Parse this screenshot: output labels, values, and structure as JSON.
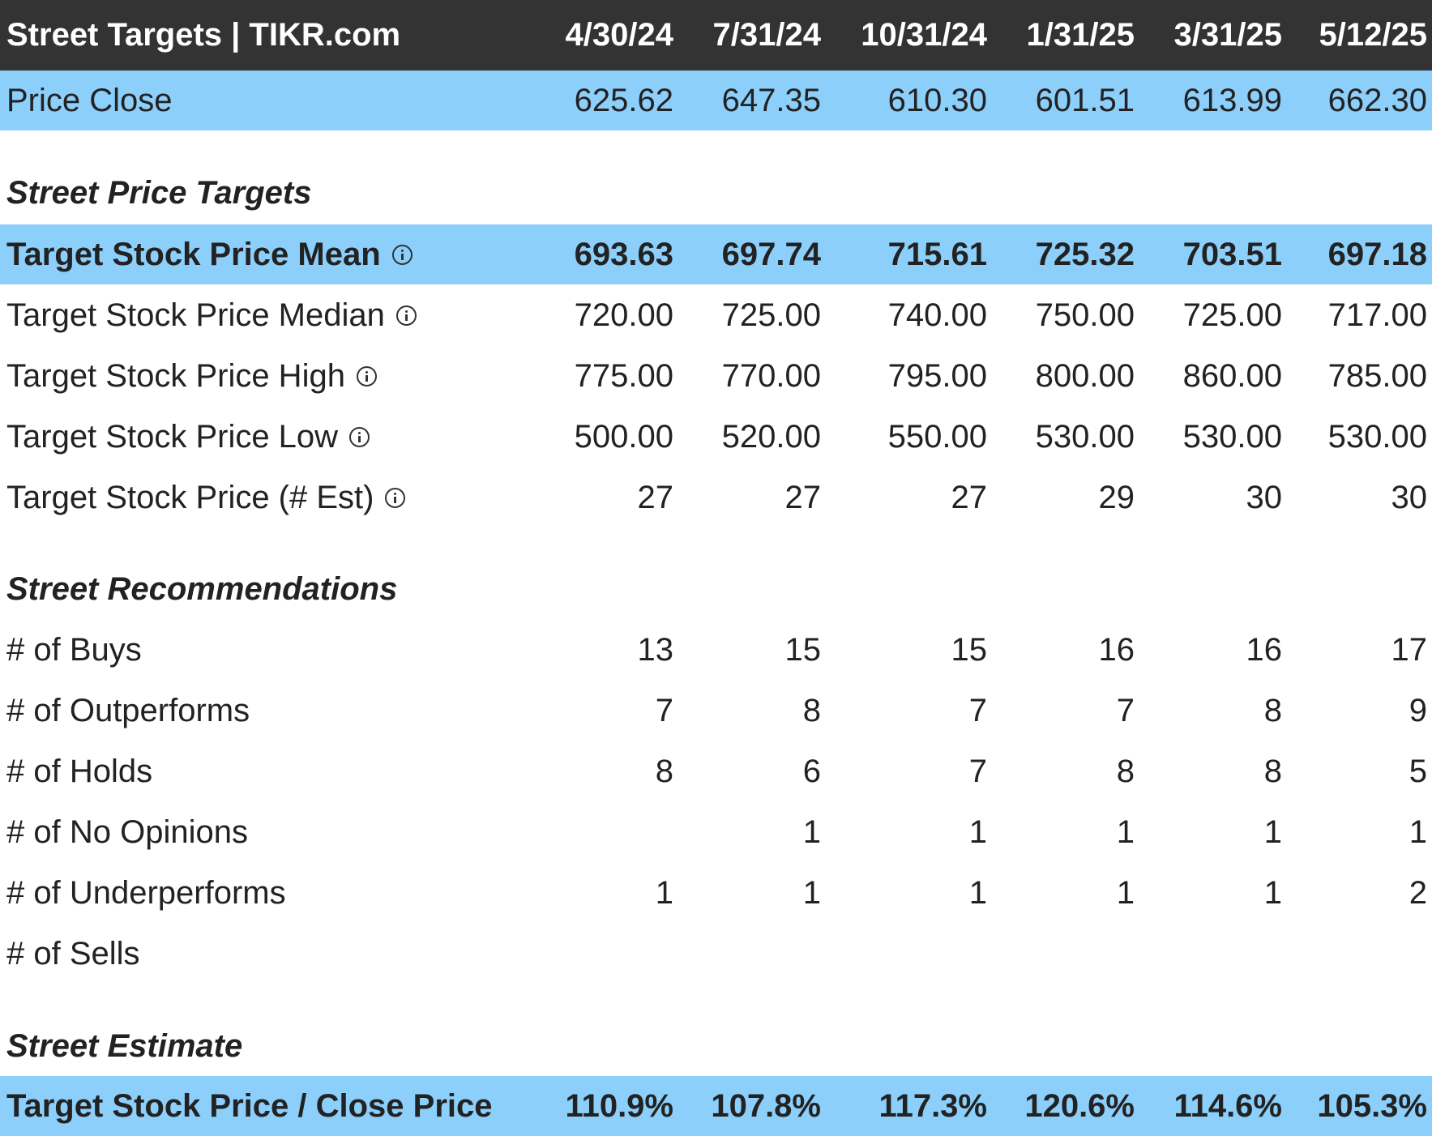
{
  "header": {
    "title": "Street Targets | TIKR.com",
    "dates": [
      "4/30/24",
      "7/31/24",
      "10/31/24",
      "1/31/25",
      "3/31/25",
      "5/12/25"
    ]
  },
  "price_close": {
    "label": "Price Close",
    "values": [
      "625.62",
      "647.35",
      "610.30",
      "601.51",
      "613.99",
      "662.30"
    ]
  },
  "sections": {
    "price_targets": "Street Price Targets",
    "recommendations": "Street Recommendations",
    "estimate": "Street Estimate"
  },
  "price_targets": [
    {
      "label": "Target Stock Price Mean",
      "icon": "info-icon",
      "values": [
        "693.63",
        "697.74",
        "715.61",
        "725.32",
        "703.51",
        "697.18"
      ]
    },
    {
      "label": "Target Stock Price Median",
      "icon": "info-icon",
      "values": [
        "720.00",
        "725.00",
        "740.00",
        "750.00",
        "725.00",
        "717.00"
      ]
    },
    {
      "label": "Target Stock Price High",
      "icon": "info-icon",
      "values": [
        "775.00",
        "770.00",
        "795.00",
        "800.00",
        "860.00",
        "785.00"
      ]
    },
    {
      "label": "Target Stock Price Low",
      "icon": "info-icon",
      "values": [
        "500.00",
        "520.00",
        "550.00",
        "530.00",
        "530.00",
        "530.00"
      ]
    },
    {
      "label": "Target Stock Price (# Est)",
      "icon": "info-icon",
      "values": [
        "27",
        "27",
        "27",
        "29",
        "30",
        "30"
      ]
    }
  ],
  "recommendations": [
    {
      "label": "# of Buys",
      "values": [
        "13",
        "15",
        "15",
        "16",
        "16",
        "17"
      ]
    },
    {
      "label": "# of Outperforms",
      "values": [
        "7",
        "8",
        "7",
        "7",
        "8",
        "9"
      ]
    },
    {
      "label": "# of Holds",
      "values": [
        "8",
        "6",
        "7",
        "8",
        "8",
        "5"
      ]
    },
    {
      "label": "# of No Opinions",
      "values": [
        "",
        "1",
        "1",
        "1",
        "1",
        "1"
      ]
    },
    {
      "label": "# of Underperforms",
      "values": [
        "1",
        "1",
        "1",
        "1",
        "1",
        "2"
      ]
    },
    {
      "label": "# of Sells",
      "values": [
        "",
        "",
        "",
        "",
        "",
        ""
      ]
    }
  ],
  "estimate": {
    "label": "Target Stock Price / Close Price",
    "values": [
      "110.9%",
      "107.8%",
      "117.3%",
      "120.6%",
      "114.6%",
      "105.3%"
    ]
  },
  "colors": {
    "header_bg": "#333333",
    "highlight_bg": "#8ccffb",
    "text": "#222222"
  }
}
